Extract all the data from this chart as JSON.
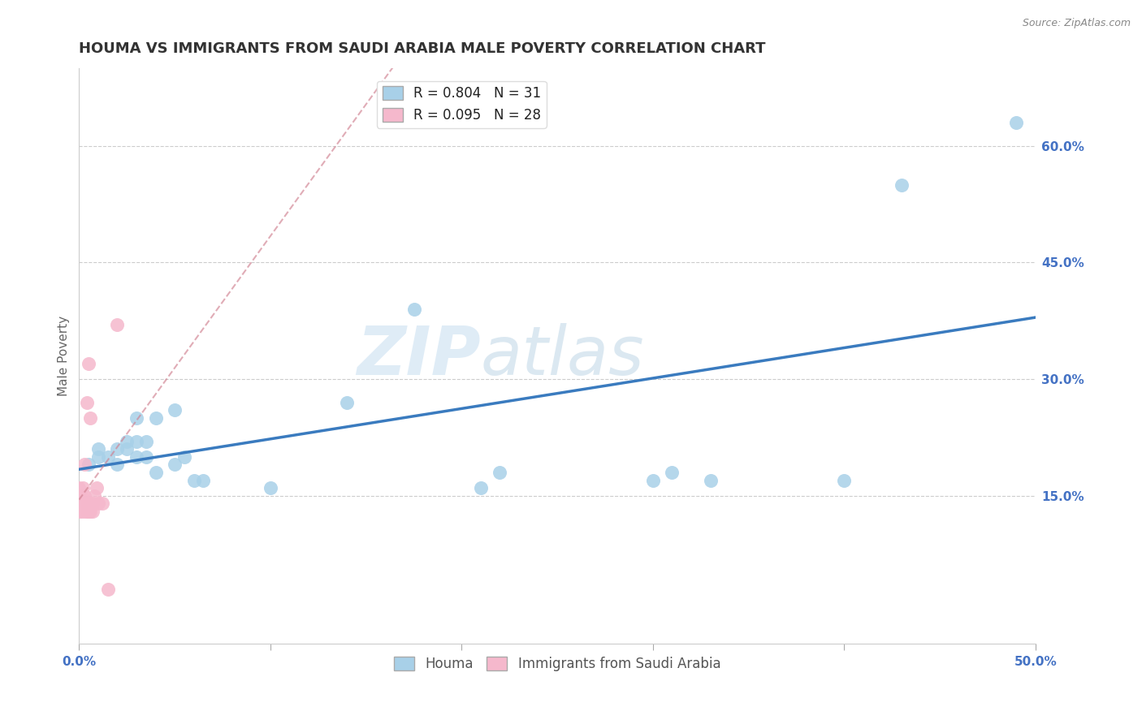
{
  "title": "HOUMA VS IMMIGRANTS FROM SAUDI ARABIA MALE POVERTY CORRELATION CHART",
  "source": "Source: ZipAtlas.com",
  "ylabel": "Male Poverty",
  "xlim": [
    0.0,
    0.5
  ],
  "ylim": [
    -0.04,
    0.7
  ],
  "xticks": [
    0.0,
    0.1,
    0.2,
    0.3,
    0.4,
    0.5
  ],
  "xticklabels": [
    "0.0%",
    "",
    "",
    "",
    "",
    "50.0%"
  ],
  "ytick_positions": [
    0.15,
    0.3,
    0.45,
    0.6
  ],
  "ytick_labels": [
    "15.0%",
    "30.0%",
    "45.0%",
    "60.0%"
  ],
  "houma_R": 0.804,
  "houma_N": 31,
  "saudi_R": 0.095,
  "saudi_N": 28,
  "houma_color": "#a8d0e8",
  "houma_line_color": "#3a7bbf",
  "saudi_color": "#f5b8cc",
  "saudi_line_color": "#d08090",
  "legend_label_houma": "Houma",
  "legend_label_saudi": "Immigrants from Saudi Arabia",
  "watermark_zip": "ZIP",
  "watermark_atlas": "atlas",
  "houma_x": [
    0.005,
    0.01,
    0.01,
    0.015,
    0.02,
    0.02,
    0.025,
    0.025,
    0.03,
    0.03,
    0.03,
    0.035,
    0.035,
    0.04,
    0.04,
    0.05,
    0.05,
    0.055,
    0.06,
    0.065,
    0.1,
    0.14,
    0.175,
    0.21,
    0.22,
    0.3,
    0.31,
    0.33,
    0.4,
    0.43,
    0.49
  ],
  "houma_y": [
    0.19,
    0.2,
    0.21,
    0.2,
    0.19,
    0.21,
    0.21,
    0.22,
    0.2,
    0.22,
    0.25,
    0.2,
    0.22,
    0.18,
    0.25,
    0.19,
    0.26,
    0.2,
    0.17,
    0.17,
    0.16,
    0.27,
    0.39,
    0.16,
    0.18,
    0.17,
    0.18,
    0.17,
    0.17,
    0.55,
    0.63
  ],
  "saudi_x": [
    0.0,
    0.0,
    0.0,
    0.0,
    0.0,
    0.001,
    0.001,
    0.002,
    0.002,
    0.003,
    0.003,
    0.003,
    0.004,
    0.004,
    0.004,
    0.005,
    0.005,
    0.005,
    0.006,
    0.006,
    0.007,
    0.007,
    0.008,
    0.009,
    0.01,
    0.012,
    0.015,
    0.02
  ],
  "saudi_y": [
    0.13,
    0.14,
    0.14,
    0.15,
    0.16,
    0.13,
    0.15,
    0.14,
    0.16,
    0.13,
    0.15,
    0.19,
    0.13,
    0.14,
    0.27,
    0.13,
    0.14,
    0.32,
    0.13,
    0.25,
    0.13,
    0.14,
    0.15,
    0.16,
    0.14,
    0.14,
    0.03,
    0.37
  ],
  "title_fontsize": 13,
  "axis_label_fontsize": 11,
  "tick_fontsize": 11,
  "legend_fontsize": 12,
  "background_color": "#ffffff",
  "grid_color": "#cccccc",
  "title_color": "#333333"
}
